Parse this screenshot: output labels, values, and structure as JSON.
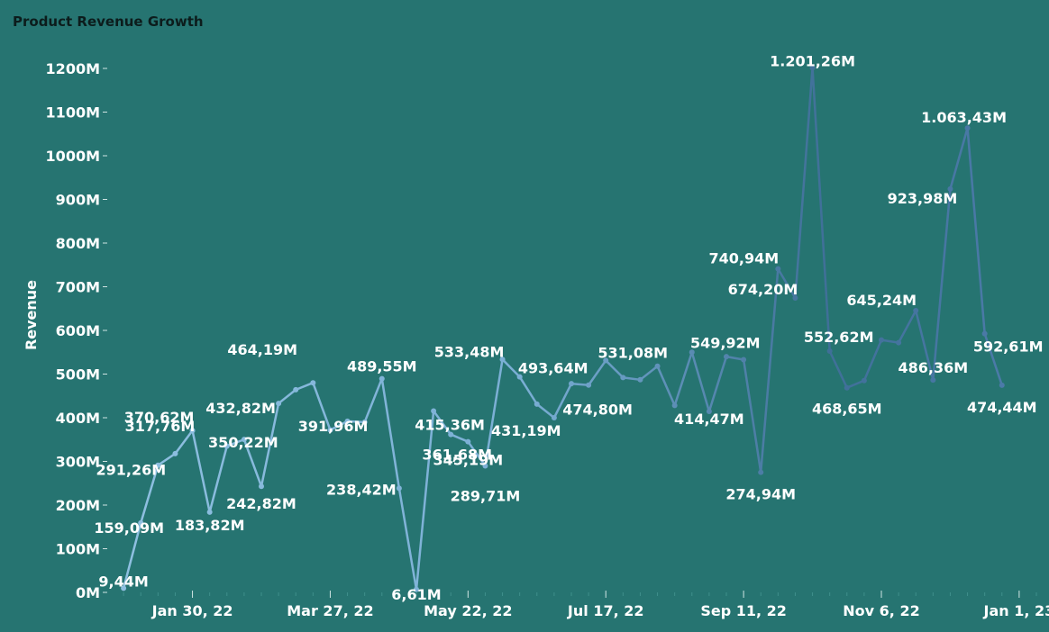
{
  "chart_data": {
    "type": "line",
    "title": "Product Revenue Growth",
    "xlabel": "",
    "ylabel": "Revenue",
    "ylim": [
      0,
      1200
    ],
    "y_unit": "M",
    "y_ticks": [
      "0M",
      "100M",
      "200M",
      "300M",
      "400M",
      "500M",
      "600M",
      "700M",
      "800M",
      "900M",
      "1000M",
      "1100M",
      "1200M"
    ],
    "x_ticks": [
      {
        "label": "Jan 30, 22",
        "date": "2022-01-30"
      },
      {
        "label": "Mar 27, 22",
        "date": "2022-03-27"
      },
      {
        "label": "May 22, 22",
        "date": "2022-05-22"
      },
      {
        "label": "Jul 17, 22",
        "date": "2022-07-17"
      },
      {
        "label": "Sep 11, 22",
        "date": "2022-09-11"
      },
      {
        "label": "Nov 6, 22",
        "date": "2022-11-06"
      },
      {
        "label": "Jan 1, 23",
        "date": "2023-01-01"
      }
    ],
    "x_range": [
      "2021-12-26",
      "2023-01-08"
    ],
    "grid": false,
    "colors": {
      "start": "#8ebfe0",
      "end": "#2b5878",
      "background": "#267471"
    },
    "points": [
      {
        "date": "2022-01-02",
        "value": 9.44,
        "label": "9,44M"
      },
      {
        "date": "2022-01-09",
        "value": 159.09,
        "label": "159,09M"
      },
      {
        "date": "2022-01-16",
        "value": 291.26,
        "label": "291,26M"
      },
      {
        "date": "2022-01-23",
        "value": 317.76,
        "label": "317,76M"
      },
      {
        "date": "2022-01-30",
        "value": 370.62,
        "label": "370,62M"
      },
      {
        "date": "2022-02-06",
        "value": 183.82,
        "label": "183,82M"
      },
      {
        "date": "2022-02-13",
        "value": 335
      },
      {
        "date": "2022-02-20",
        "value": 350.22,
        "label": "350,22M"
      },
      {
        "date": "2022-02-27",
        "value": 242.82,
        "label": "242,82M"
      },
      {
        "date": "2022-03-06",
        "value": 432.82,
        "label": "432,82M"
      },
      {
        "date": "2022-03-13",
        "value": 464.19,
        "label": "464,19M"
      },
      {
        "date": "2022-03-20",
        "value": 480
      },
      {
        "date": "2022-03-27",
        "value": 372
      },
      {
        "date": "2022-04-03",
        "value": 391.96,
        "label": "391,96M"
      },
      {
        "date": "2022-04-10",
        "value": 390
      },
      {
        "date": "2022-04-17",
        "value": 489.55,
        "label": "489,55M"
      },
      {
        "date": "2022-04-24",
        "value": 238.42,
        "label": "238,42M"
      },
      {
        "date": "2022-05-01",
        "value": 6.61,
        "label": "6,61M"
      },
      {
        "date": "2022-05-08",
        "value": 415.36,
        "label": "415,36M"
      },
      {
        "date": "2022-05-15",
        "value": 361.68,
        "label": "361,68M"
      },
      {
        "date": "2022-05-22",
        "value": 345.19,
        "label": "345,19M"
      },
      {
        "date": "2022-05-29",
        "value": 289.71,
        "label": "289,71M"
      },
      {
        "date": "2022-06-05",
        "value": 533.48,
        "label": "533,48M"
      },
      {
        "date": "2022-06-12",
        "value": 493.64,
        "label": "493,64M"
      },
      {
        "date": "2022-06-19",
        "value": 431.19,
        "label": "431,19M"
      },
      {
        "date": "2022-06-26",
        "value": 400
      },
      {
        "date": "2022-07-03",
        "value": 478
      },
      {
        "date": "2022-07-10",
        "value": 474.8,
        "label": "474,80M"
      },
      {
        "date": "2022-07-17",
        "value": 531.08,
        "label": "531,08M"
      },
      {
        "date": "2022-07-24",
        "value": 492
      },
      {
        "date": "2022-07-31",
        "value": 487
      },
      {
        "date": "2022-08-07",
        "value": 518
      },
      {
        "date": "2022-08-14",
        "value": 428
      },
      {
        "date": "2022-08-21",
        "value": 549.92,
        "label": "549,92M"
      },
      {
        "date": "2022-08-28",
        "value": 414.47,
        "label": "414,47M"
      },
      {
        "date": "2022-09-04",
        "value": 540
      },
      {
        "date": "2022-09-11",
        "value": 533
      },
      {
        "date": "2022-09-18",
        "value": 274.94,
        "label": "274,94M"
      },
      {
        "date": "2022-09-25",
        "value": 740.94,
        "label": "740,94M"
      },
      {
        "date": "2022-10-02",
        "value": 674.2,
        "label": "674,20M"
      },
      {
        "date": "2022-10-09",
        "value": 1201.26,
        "label": "1.201,26M"
      },
      {
        "date": "2022-10-16",
        "value": 552.62,
        "label": "552,62M"
      },
      {
        "date": "2022-10-23",
        "value": 468.65,
        "label": "468,65M"
      },
      {
        "date": "2022-10-30",
        "value": 485
      },
      {
        "date": "2022-11-06",
        "value": 578
      },
      {
        "date": "2022-11-13",
        "value": 572
      },
      {
        "date": "2022-11-20",
        "value": 645.24,
        "label": "645,24M"
      },
      {
        "date": "2022-11-27",
        "value": 486.36,
        "label": "486,36M"
      },
      {
        "date": "2022-12-04",
        "value": 923.98,
        "label": "923,98M"
      },
      {
        "date": "2022-12-11",
        "value": 1063.43,
        "label": "1.063,43M"
      },
      {
        "date": "2022-12-18",
        "value": 592.61,
        "label": "592,61M"
      },
      {
        "date": "2022-12-25",
        "value": 474.44,
        "label": "474,44M"
      }
    ]
  }
}
